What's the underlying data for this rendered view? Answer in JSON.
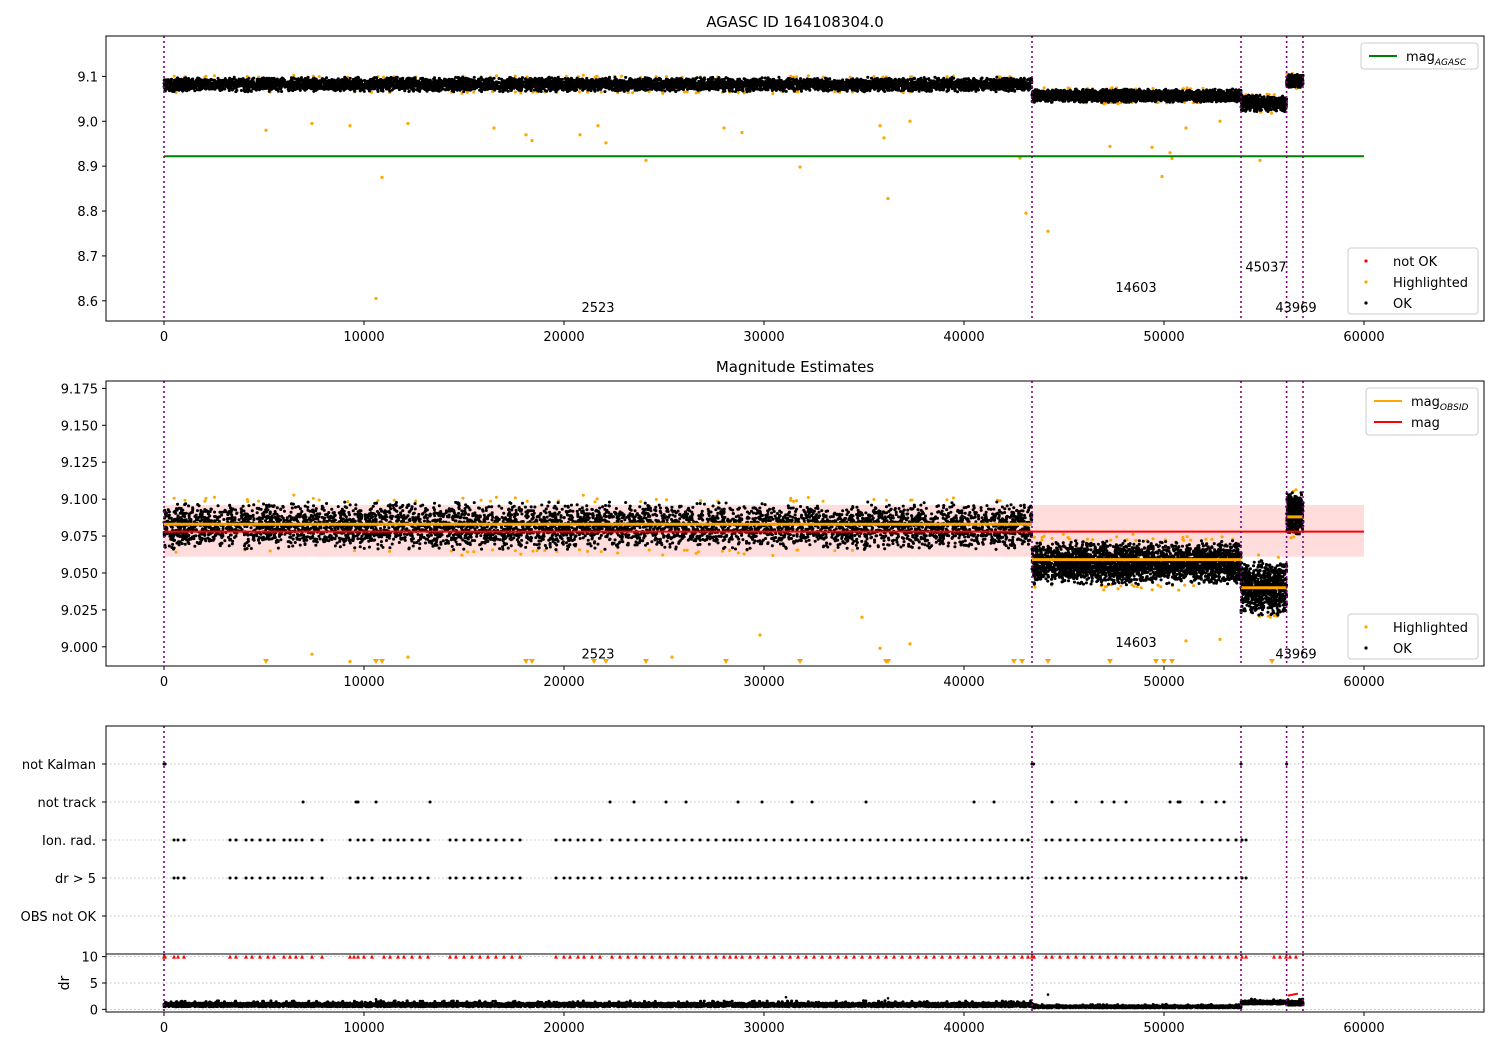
{
  "figure": {
    "background": "#ffffff",
    "colors": {
      "ok": "#000000",
      "highlighted": "#ffa500",
      "not_ok": "#ff0000",
      "agasc_line": "#008000",
      "obsid_line": "#ffa500",
      "mag_line": "#ff0000",
      "band": "#ffdddd",
      "obsid_boundary": "#800080",
      "grid": "#b0b0b0"
    }
  },
  "chart_data": [
    {
      "type": "scatter",
      "title": "AGASC ID 164108304.0",
      "xlabel": "",
      "ylabel": "",
      "xlim": [
        -2900,
        66000
      ],
      "ylim": [
        8.555,
        9.19
      ],
      "xticks": [
        "0",
        "10000",
        "20000",
        "30000",
        "40000",
        "50000",
        "60000"
      ],
      "yticks": [
        "8.6",
        "8.7",
        "8.8",
        "8.9",
        "9.0",
        "9.1"
      ],
      "grid": false,
      "obsid_boundaries": [
        0,
        43400,
        53850,
        56130,
        56950
      ],
      "segments": [
        {
          "x0": 0,
          "x1": 43400,
          "mean": 9.082,
          "spread": 0.013
        },
        {
          "x0": 43400,
          "x1": 53850,
          "mean": 9.057,
          "spread": 0.012
        },
        {
          "x0": 53850,
          "x1": 56130,
          "mean": 9.04,
          "spread": 0.015
        },
        {
          "x0": 56130,
          "x1": 56950,
          "mean": 9.09,
          "spread": 0.012
        }
      ],
      "agasc_mag": {
        "value": 8.922,
        "x0": 0,
        "x1": 60000
      },
      "obsid_labels": [
        {
          "text": "2523",
          "x": 21700,
          "y": 8.575
        },
        {
          "text": "14603",
          "x": 48600,
          "y": 8.62
        },
        {
          "text": "45037",
          "x": 55100,
          "y": 8.665
        },
        {
          "text": "43969",
          "x": 56600,
          "y": 8.575
        }
      ],
      "highlighted_outliers": [
        [
          5100,
          8.98
        ],
        [
          7400,
          8.995
        ],
        [
          9300,
          8.99
        ],
        [
          10600,
          8.605
        ],
        [
          10900,
          8.875
        ],
        [
          12200,
          8.995
        ],
        [
          16500,
          8.985
        ],
        [
          18100,
          8.97
        ],
        [
          18400,
          8.957
        ],
        [
          20800,
          8.97
        ],
        [
          21700,
          8.99
        ],
        [
          22100,
          8.952
        ],
        [
          24100,
          8.913
        ],
        [
          28000,
          8.985
        ],
        [
          28900,
          8.975
        ],
        [
          31800,
          8.898
        ],
        [
          35800,
          8.99
        ],
        [
          36000,
          8.963
        ],
        [
          36200,
          8.828
        ],
        [
          37300,
          9.0
        ],
        [
          42800,
          8.918
        ],
        [
          43100,
          8.795
        ],
        [
          44200,
          8.755
        ],
        [
          47300,
          8.944
        ],
        [
          49400,
          8.942
        ],
        [
          49900,
          8.877
        ],
        [
          50300,
          8.93
        ],
        [
          50400,
          8.917
        ],
        [
          51100,
          8.985
        ],
        [
          52800,
          9.0
        ],
        [
          54800,
          8.913
        ]
      ],
      "legends": [
        {
          "position": "upper-right",
          "entries": [
            {
              "label": "mag",
              "sub": "AGASC",
              "kind": "line",
              "color": "#008000"
            }
          ]
        },
        {
          "position": "lower-right",
          "entries": [
            {
              "label": "not OK",
              "kind": "point",
              "color": "#ff0000"
            },
            {
              "label": "Highlighted",
              "kind": "point",
              "color": "#ffa500"
            },
            {
              "label": "OK",
              "kind": "point",
              "color": "#000000"
            }
          ]
        }
      ]
    },
    {
      "type": "scatter",
      "title": "Magnitude Estimates",
      "xlabel": "",
      "ylabel": "",
      "xlim": [
        -2900,
        66000
      ],
      "ylim": [
        8.987,
        9.18
      ],
      "xticks": [
        "0",
        "10000",
        "20000",
        "30000",
        "40000",
        "50000",
        "60000"
      ],
      "yticks": [
        "9.000",
        "9.025",
        "9.050",
        "9.075",
        "9.100",
        "9.125",
        "9.150",
        "9.175"
      ],
      "grid": false,
      "obsid_boundaries": [
        0,
        43400,
        53850,
        56130,
        56950
      ],
      "segments": [
        {
          "x0": 0,
          "x1": 43400,
          "mean": 9.082,
          "spread": 0.013
        },
        {
          "x0": 43400,
          "x1": 53850,
          "mean": 9.057,
          "spread": 0.012
        },
        {
          "x0": 53850,
          "x1": 56130,
          "mean": 9.04,
          "spread": 0.015
        },
        {
          "x0": 56130,
          "x1": 56950,
          "mean": 9.09,
          "spread": 0.012
        }
      ],
      "mag_band": {
        "low": 9.061,
        "high": 9.096,
        "x0": 0,
        "x1": 60000
      },
      "mag_line": {
        "value": 9.078,
        "x0": 0,
        "x1": 60000
      },
      "obsid_mag_lines": [
        {
          "x0": 0,
          "x1": 43400,
          "value": 9.083
        },
        {
          "x0": 43400,
          "x1": 53850,
          "value": 9.059
        },
        {
          "x0": 53850,
          "x1": 56130,
          "value": 9.04
        },
        {
          "x0": 56130,
          "x1": 56950,
          "value": 9.088
        }
      ],
      "obsid_labels": [
        {
          "text": "2523",
          "x": 21700,
          "y": 8.992
        },
        {
          "text": "14603",
          "x": 48600,
          "y": 9.0
        },
        {
          "text": "43969",
          "x": 56600,
          "y": 8.992
        }
      ],
      "below_range_markers": [
        5100,
        10600,
        10900,
        18100,
        18400,
        21500,
        22100,
        24100,
        28100,
        31800,
        36100,
        36200,
        42500,
        42900,
        44200,
        47300,
        49600,
        50000,
        50400,
        55400
      ],
      "highlighted_outliers": [
        [
          7400,
          8.995
        ],
        [
          9300,
          8.99
        ],
        [
          12200,
          8.993
        ],
        [
          16500,
          8.985
        ],
        [
          25400,
          8.993
        ],
        [
          29800,
          9.008
        ],
        [
          34900,
          9.02
        ],
        [
          35800,
          8.999
        ],
        [
          37300,
          9.002
        ],
        [
          51100,
          9.004
        ],
        [
          51400,
          8.985
        ],
        [
          52800,
          9.005
        ]
      ],
      "legends": [
        {
          "position": "upper-right",
          "entries": [
            {
              "label": "mag",
              "sub": "OBSID",
              "kind": "line",
              "color": "#ffa500"
            },
            {
              "label": "mag",
              "kind": "line",
              "color": "#ff0000"
            }
          ]
        },
        {
          "position": "lower-right",
          "entries": [
            {
              "label": "Highlighted",
              "kind": "point",
              "color": "#ffa500"
            },
            {
              "label": "OK",
              "kind": "point",
              "color": "#000000"
            }
          ]
        }
      ]
    },
    {
      "type": "scatter",
      "title": "",
      "xlabel": "",
      "ylabel": "",
      "xlim": [
        -2900,
        66000
      ],
      "grid": true,
      "obsid_boundaries": [
        0,
        43400,
        53850,
        56130,
        56950
      ],
      "flag_rows": [
        "not Kalman",
        "not track",
        "Ion. rad.",
        "dr > 5",
        "OBS not OK"
      ],
      "flag_points": {
        "not Kalman": [
          0,
          50,
          43400,
          43480,
          53850,
          56130
        ],
        "not track": [
          6950,
          9600,
          9700,
          10600,
          13300,
          22300,
          23500,
          25100,
          26100,
          28700,
          29900,
          31400,
          32400,
          35100,
          40500,
          41500,
          44400,
          45600,
          46900,
          47500,
          48100,
          50300,
          50700,
          50800,
          51900,
          52600,
          53000
        ],
        "Ion. rad.": [
          500,
          700,
          1000,
          3300,
          3600,
          4100,
          4400,
          4800,
          5200,
          5500,
          6000,
          6300,
          6600,
          6900,
          7400,
          7900,
          9300,
          9700,
          10000,
          10400,
          11000,
          11300,
          11700,
          12000,
          12400,
          12800,
          13200,
          14300,
          14600,
          15000,
          15400,
          15800,
          16200,
          16600,
          17000,
          17400,
          17800,
          19600,
          20000,
          20300,
          20700,
          21000,
          21400,
          21800,
          22400,
          22800,
          23200,
          23600,
          24000,
          24400,
          24800,
          25200,
          25600,
          26000,
          26400,
          26800,
          27200,
          27600,
          28000,
          28300,
          28600,
          28900,
          29300,
          29700,
          30100,
          30500,
          30900,
          31300,
          31700,
          32100,
          32500,
          32900,
          33300,
          33700,
          34100,
          34500,
          34900,
          35300,
          35700,
          36100,
          36500,
          36900,
          37300,
          37700,
          38100,
          38500,
          38900,
          39300,
          39700,
          40100,
          40500,
          40900,
          41300,
          41700,
          42100,
          42500,
          42900,
          43200,
          44100,
          44400,
          44800,
          45200,
          45600,
          46000,
          46400,
          46800,
          47200,
          47600,
          48000,
          48400,
          48800,
          49200,
          49600,
          50000,
          50400,
          50800,
          51200,
          51600,
          52000,
          52400,
          52800,
          53200,
          53600,
          53900,
          54100
        ],
        "dr > 5": [
          500,
          700,
          1000,
          3300,
          3600,
          4100,
          4400,
          4800,
          5200,
          5500,
          6000,
          6300,
          6600,
          6900,
          7400,
          7900,
          9300,
          9700,
          10000,
          10400,
          11000,
          11300,
          11700,
          12000,
          12400,
          12800,
          13200,
          14300,
          14600,
          15000,
          15400,
          15800,
          16200,
          16600,
          17000,
          17400,
          17800,
          19600,
          20000,
          20300,
          20700,
          21000,
          21400,
          21800,
          22400,
          22800,
          23200,
          23600,
          24000,
          24400,
          24800,
          25200,
          25600,
          26000,
          26400,
          26800,
          27200,
          27600,
          28000,
          28300,
          28600,
          28900,
          29300,
          29700,
          30100,
          30500,
          30900,
          31300,
          31700,
          32100,
          32500,
          32900,
          33300,
          33700,
          34100,
          34500,
          34900,
          35300,
          35700,
          36100,
          36500,
          36900,
          37300,
          37700,
          38100,
          38500,
          38900,
          39300,
          39700,
          40100,
          40500,
          40900,
          41300,
          41700,
          42100,
          42500,
          42900,
          43200,
          44100,
          44400,
          44800,
          45200,
          45600,
          46000,
          46400,
          46800,
          47200,
          47600,
          48000,
          48400,
          48800,
          49200,
          49600,
          50000,
          50400,
          50800,
          51200,
          51600,
          52000,
          52400,
          52800,
          53200,
          53600,
          53900,
          54100
        ],
        "OBS not OK": []
      }
    },
    {
      "type": "scatter",
      "title": "",
      "xlabel": "",
      "ylabel": "dr",
      "xlim": [
        -2900,
        66000
      ],
      "ylim": [
        -0.5,
        10.5
      ],
      "xticks": [
        "0",
        "10000",
        "20000",
        "30000",
        "40000",
        "50000",
        "60000"
      ],
      "yticks": [
        "0",
        "5",
        "10"
      ],
      "grid": true,
      "obsid_boundaries": [
        0,
        43400,
        53850,
        56130,
        56950
      ],
      "dr_segments": [
        {
          "x0": 0,
          "x1": 43400,
          "base": 0.5,
          "top": 1.2
        },
        {
          "x0": 43400,
          "x1": 53850,
          "base": 0.3,
          "top": 0.7
        },
        {
          "x0": 53850,
          "x1": 56130,
          "base": 1.0,
          "top": 1.6
        },
        {
          "x0": 56130,
          "x1": 56950,
          "base": 0.8,
          "top": 1.5
        }
      ],
      "dr_outliers": [
        [
          10600,
          1.9
        ],
        [
          31100,
          2.3
        ],
        [
          36200,
          2.1
        ],
        [
          44200,
          2.8
        ]
      ],
      "dr_clipped_markers": [
        0,
        50,
        500,
        700,
        1000,
        3300,
        3600,
        4100,
        4400,
        4800,
        5200,
        5500,
        6000,
        6300,
        6600,
        6900,
        7400,
        7900,
        9300,
        9500,
        9700,
        10000,
        10400,
        11000,
        11300,
        11700,
        12000,
        12400,
        12800,
        13200,
        14300,
        14600,
        15000,
        15400,
        15800,
        16200,
        16600,
        17000,
        17400,
        17800,
        19600,
        20000,
        20300,
        20700,
        21000,
        21400,
        21800,
        22400,
        22800,
        23200,
        23600,
        24000,
        24400,
        24800,
        25200,
        25600,
        26000,
        26400,
        26800,
        27200,
        27600,
        28000,
        28300,
        28600,
        28900,
        29300,
        29700,
        30100,
        30500,
        30900,
        31300,
        31700,
        32100,
        32500,
        32900,
        33300,
        33700,
        34100,
        34500,
        34900,
        35300,
        35700,
        36100,
        36500,
        36900,
        37300,
        37700,
        38100,
        38500,
        38900,
        39300,
        39700,
        40100,
        40500,
        40900,
        41300,
        41700,
        42100,
        42500,
        42900,
        43200,
        43400,
        43500,
        44100,
        44400,
        44800,
        45200,
        45600,
        46000,
        46400,
        46800,
        47200,
        47600,
        48000,
        48400,
        48800,
        49200,
        49600,
        50000,
        50400,
        50800,
        51200,
        51600,
        52000,
        52400,
        52800,
        53200,
        53600,
        53900,
        54100,
        55500,
        55800,
        56100,
        56300,
        56600
      ]
    }
  ]
}
